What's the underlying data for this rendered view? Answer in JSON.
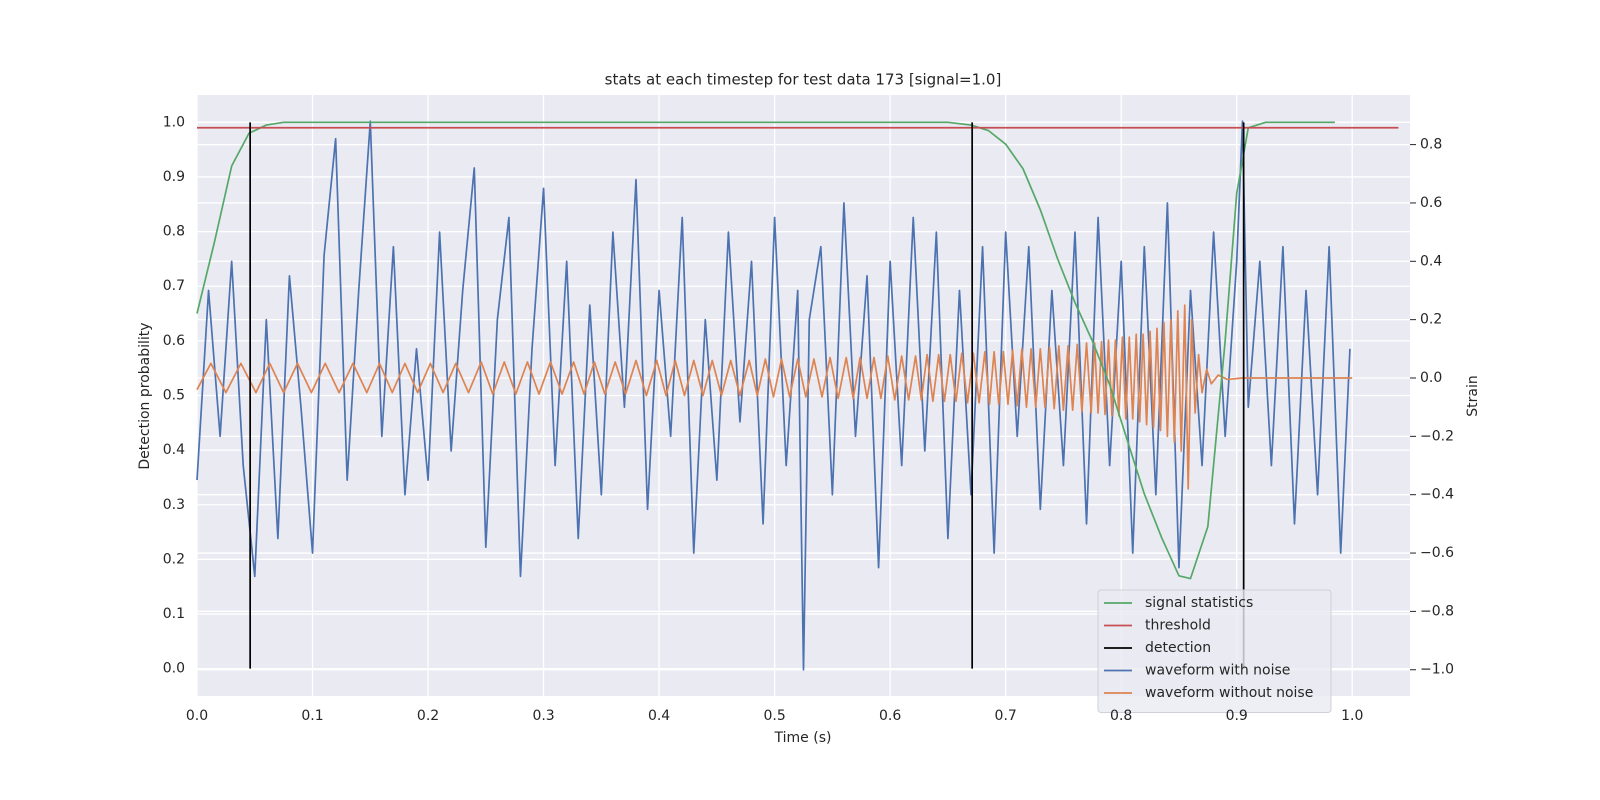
{
  "chart_data": {
    "type": "line",
    "title": "stats at each timestep for test data 173 [signal=1.0]",
    "x_label": "Time (s)",
    "y_label": "Detection probability",
    "y2_label": "Strain",
    "xlim": [
      0,
      1.05
    ],
    "ylim": [
      -0.05,
      1.05
    ],
    "y2lim": [
      -1.09,
      0.97
    ],
    "xticks": [
      {
        "value": 0,
        "label": "0.0"
      },
      0.1,
      0.2,
      0.3,
      0.4,
      0.5,
      0.6,
      0.7,
      0.8,
      0.9,
      {
        "value": 1,
        "label": "1.0"
      }
    ],
    "yticks": [
      {
        "value": 0,
        "label": "0.0"
      },
      0.1,
      0.2,
      0.3,
      0.4,
      0.5,
      0.6,
      0.7,
      0.8,
      0.9,
      {
        "value": 1,
        "label": "1.0"
      }
    ],
    "y2ticks": [
      {
        "value": -1,
        "label": "−1.0"
      },
      {
        "value": -0.8,
        "label": "−0.8"
      },
      {
        "value": -0.6,
        "label": "−0.6"
      },
      {
        "value": -0.4,
        "label": "−0.4"
      },
      {
        "value": -0.2,
        "label": "−0.2"
      },
      {
        "value": 0,
        "label": "0.0"
      },
      0.2,
      0.4,
      0.6,
      0.8
    ],
    "grid": true,
    "legend": "lower right",
    "series": [
      {
        "name": "signal statistics",
        "color": "#55a868",
        "x": [
          0,
          0.015,
          0.03,
          0.045,
          0.06,
          0.075,
          0.65,
          0.67,
          0.685,
          0.7,
          0.715,
          0.73,
          0.745,
          0.76,
          0.775,
          0.79,
          0.805,
          0.82,
          0.835,
          0.85,
          0.86,
          0.875,
          0.89,
          0.9,
          0.91,
          0.925,
          0.985
        ],
        "values": [
          0.65,
          0.78,
          0.92,
          0.98,
          0.995,
          1.0,
          1.0,
          0.995,
          0.985,
          0.96,
          0.915,
          0.84,
          0.75,
          0.67,
          0.6,
          0.52,
          0.42,
          0.32,
          0.24,
          0.17,
          0.165,
          0.26,
          0.6,
          0.87,
          0.99,
          1.0,
          1.0
        ]
      },
      {
        "name": "threshold",
        "color": "#c44e52",
        "x": [
          0,
          1.04
        ],
        "values": [
          0.99,
          0.99
        ]
      },
      {
        "name": "detection",
        "color": "#000000",
        "x": [
          0.046,
          0.046,
          0.046,
          0.671,
          0.671,
          0.671,
          0.906,
          0.906
        ],
        "values": [
          0,
          1,
          null,
          0,
          1,
          null,
          0,
          1
        ]
      },
      {
        "name": "waveform with noise",
        "color": "#4c72b0",
        "axis": "y2",
        "x": [
          0,
          0.01,
          0.02,
          0.03,
          0.04,
          0.05,
          0.06,
          0.07,
          0.08,
          0.09,
          0.1,
          0.11,
          0.12,
          0.13,
          0.14,
          0.15,
          0.16,
          0.17,
          0.18,
          0.19,
          0.2,
          0.21,
          0.22,
          0.23,
          0.24,
          0.25,
          0.26,
          0.27,
          0.28,
          0.29,
          0.3,
          0.31,
          0.32,
          0.33,
          0.34,
          0.35,
          0.36,
          0.37,
          0.38,
          0.39,
          0.4,
          0.41,
          0.42,
          0.43,
          0.44,
          0.45,
          0.46,
          0.47,
          0.48,
          0.49,
          0.5,
          0.51,
          0.52,
          0.525,
          0.53,
          0.54,
          0.55,
          0.56,
          0.57,
          0.58,
          0.59,
          0.6,
          0.61,
          0.62,
          0.63,
          0.64,
          0.65,
          0.66,
          0.67,
          0.68,
          0.69,
          0.7,
          0.71,
          0.72,
          0.73,
          0.74,
          0.75,
          0.76,
          0.77,
          0.78,
          0.79,
          0.8,
          0.81,
          0.82,
          0.83,
          0.84,
          0.85,
          0.86,
          0.87,
          0.88,
          0.89,
          0.9,
          0.905,
          0.91,
          0.92,
          0.93,
          0.94,
          0.95,
          0.96,
          0.97,
          0.98,
          0.99,
          0.998
        ],
        "values": [
          -0.35,
          0.3,
          -0.2,
          0.4,
          -0.3,
          -0.68,
          0.2,
          -0.55,
          0.35,
          -0.1,
          -0.6,
          0.42,
          0.82,
          -0.35,
          0.3,
          0.88,
          -0.2,
          0.45,
          -0.4,
          0.1,
          -0.35,
          0.5,
          -0.25,
          0.3,
          0.72,
          -0.58,
          0.2,
          0.55,
          -0.68,
          0.1,
          0.65,
          -0.3,
          0.4,
          -0.55,
          0.25,
          -0.4,
          0.5,
          -0.1,
          0.68,
          -0.45,
          0.3,
          -0.2,
          0.55,
          -0.6,
          0.2,
          -0.35,
          0.5,
          -0.15,
          0.4,
          -0.5,
          0.55,
          -0.3,
          0.3,
          -1.0,
          0.2,
          0.45,
          -0.4,
          0.6,
          -0.2,
          0.35,
          -0.65,
          0.4,
          -0.3,
          0.55,
          -0.25,
          0.5,
          -0.55,
          0.3,
          -0.4,
          0.45,
          -0.6,
          0.5,
          -0.2,
          0.45,
          -0.45,
          0.3,
          -0.3,
          0.5,
          -0.5,
          0.55,
          -0.3,
          0.4,
          -0.6,
          0.45,
          -0.4,
          0.6,
          -0.65,
          0.3,
          -0.3,
          0.5,
          -0.2,
          0.4,
          0.88,
          -0.1,
          0.4,
          -0.3,
          0.45,
          -0.5,
          0.3,
          -0.4,
          0.45,
          -0.6,
          0.1
        ]
      },
      {
        "name": "waveform without noise",
        "color": "#dd8452",
        "axis": "y2",
        "x": [
          0,
          0.012,
          0.025,
          0.038,
          0.051,
          0.063,
          0.075,
          0.087,
          0.099,
          0.111,
          0.123,
          0.135,
          0.147,
          0.158,
          0.169,
          0.18,
          0.191,
          0.202,
          0.213,
          0.224,
          0.235,
          0.246,
          0.256,
          0.266,
          0.276,
          0.286,
          0.296,
          0.306,
          0.316,
          0.326,
          0.335,
          0.344,
          0.353,
          0.362,
          0.371,
          0.38,
          0.389,
          0.398,
          0.406,
          0.414,
          0.422,
          0.43,
          0.438,
          0.446,
          0.454,
          0.462,
          0.47,
          0.478,
          0.485,
          0.492,
          0.499,
          0.506,
          0.513,
          0.52,
          0.527,
          0.534,
          0.541,
          0.548,
          0.555,
          0.562,
          0.568,
          0.574,
          0.58,
          0.586,
          0.592,
          0.598,
          0.604,
          0.61,
          0.616,
          0.622,
          0.627,
          0.632,
          0.637,
          0.642,
          0.647,
          0.652,
          0.657,
          0.662,
          0.667,
          0.672,
          0.677,
          0.682,
          0.686,
          0.69,
          0.694,
          0.698,
          0.702,
          0.706,
          0.71,
          0.714,
          0.718,
          0.722,
          0.726,
          0.73,
          0.734,
          0.738,
          0.742,
          0.746,
          0.75,
          0.754,
          0.758,
          0.762,
          0.766,
          0.77,
          0.774,
          0.777,
          0.78,
          0.783,
          0.786,
          0.789,
          0.792,
          0.795,
          0.798,
          0.801,
          0.804,
          0.807,
          0.81,
          0.813,
          0.816,
          0.819,
          0.822,
          0.825,
          0.828,
          0.831,
          0.834,
          0.837,
          0.84,
          0.843,
          0.846,
          0.849,
          0.852,
          0.855,
          0.858,
          0.861,
          0.864,
          0.867,
          0.87,
          0.874,
          0.878,
          0.884,
          0.892,
          0.905,
          1.0
        ],
        "values": [
          -0.04,
          0.05,
          -0.05,
          0.05,
          -0.05,
          0.05,
          -0.05,
          0.05,
          -0.05,
          0.05,
          -0.05,
          0.05,
          -0.05,
          0.05,
          -0.05,
          0.05,
          -0.05,
          0.05,
          -0.05,
          0.05,
          -0.05,
          0.055,
          -0.055,
          0.055,
          -0.055,
          0.055,
          -0.055,
          0.055,
          -0.055,
          0.055,
          -0.055,
          0.055,
          -0.055,
          0.055,
          -0.055,
          0.06,
          -0.06,
          0.06,
          -0.06,
          0.06,
          -0.06,
          0.06,
          -0.06,
          0.06,
          -0.06,
          0.06,
          -0.06,
          0.06,
          -0.06,
          0.065,
          -0.065,
          0.065,
          -0.065,
          0.065,
          -0.065,
          0.065,
          -0.065,
          0.07,
          -0.07,
          0.07,
          -0.07,
          0.07,
          -0.07,
          0.07,
          -0.07,
          0.075,
          -0.075,
          0.075,
          -0.075,
          0.075,
          -0.075,
          0.08,
          -0.08,
          0.08,
          -0.08,
          0.08,
          -0.08,
          0.085,
          -0.085,
          0.085,
          -0.085,
          0.09,
          -0.09,
          0.09,
          -0.09,
          0.09,
          -0.09,
          0.095,
          -0.095,
          0.1,
          -0.1,
          0.1,
          -0.1,
          0.1,
          -0.1,
          0.105,
          -0.105,
          0.11,
          -0.11,
          0.11,
          -0.11,
          0.115,
          -0.115,
          0.12,
          -0.12,
          0.12,
          -0.12,
          0.125,
          -0.125,
          0.13,
          -0.13,
          0.13,
          -0.13,
          0.14,
          -0.14,
          0.14,
          -0.14,
          0.15,
          -0.15,
          0.15,
          -0.16,
          0.16,
          -0.17,
          0.17,
          -0.18,
          0.19,
          -0.2,
          0.2,
          -0.22,
          0.23,
          -0.25,
          0.25,
          -0.38,
          0.2,
          -0.12,
          0.08,
          -0.05,
          0.03,
          -0.02,
          0.01,
          -0.005,
          0,
          0
        ]
      }
    ]
  }
}
